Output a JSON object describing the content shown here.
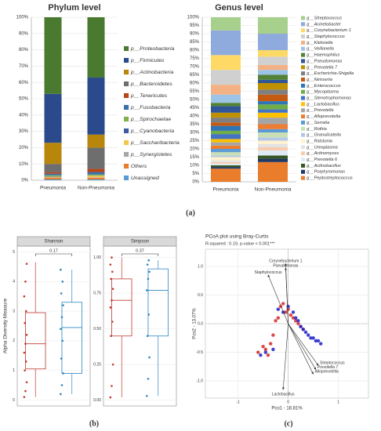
{
  "panel_labels": [
    "(a)",
    "(b)",
    "(c)"
  ],
  "chart_data": [
    {
      "type": "stacked_bar",
      "title": "Phylum level",
      "categories": [
        "Pneumonia",
        "Non-Pneumonia"
      ],
      "ylim": [
        0,
        100
      ],
      "yticks": [
        {
          "value": 0,
          "label": "0%"
        },
        {
          "value": 10,
          "label": "10%"
        },
        {
          "value": 20,
          "label": "20%"
        },
        {
          "value": 30,
          "label": "30%"
        },
        {
          "value": 40,
          "label": "40%"
        },
        {
          "value": 50,
          "label": "50%"
        },
        {
          "value": 60,
          "label": "60%"
        },
        {
          "value": 70,
          "label": "70%"
        },
        {
          "value": 80,
          "label": "80%"
        },
        {
          "value": 90,
          "label": "90%"
        },
        {
          "value": 100,
          "label": "100%"
        }
      ],
      "grid": true,
      "series": [
        {
          "name": "p__Proteobacteria",
          "color": "#4a7a2f",
          "values": [
            47,
            37
          ]
        },
        {
          "name": "p__Firmicutes",
          "color": "#2b4a8c",
          "values": [
            30,
            35
          ]
        },
        {
          "name": "p__Actinobacteria",
          "color": "#b8860b",
          "values": [
            13,
            8
          ]
        },
        {
          "name": "p__Bacteroidetes",
          "color": "#6e6e6e",
          "values": [
            5,
            13
          ]
        },
        {
          "name": "p__Tenericutes",
          "color": "#b5451b",
          "values": [
            1,
            2
          ]
        },
        {
          "name": "p__Fusobacteria",
          "color": "#3a6fa8",
          "values": [
            1,
            1.5
          ]
        },
        {
          "name": "p__Spirochaetae",
          "color": "#7fb24a",
          "values": [
            0.5,
            0.5
          ]
        },
        {
          "name": "p__Cyanobacteria",
          "color": "#3b5ba0",
          "values": [
            0.3,
            0.2
          ]
        },
        {
          "name": "p__Saccharibacteria",
          "color": "#f2c94c",
          "values": [
            0.5,
            1
          ]
        },
        {
          "name": "p__Synergistetes",
          "color": "#a6a6a6",
          "values": [
            0.2,
            0.3
          ]
        },
        {
          "name": "Others",
          "color": "#e97d2c",
          "values": [
            1,
            1
          ]
        },
        {
          "name": "Unassigned",
          "color": "#5b9bd5",
          "values": [
            0.5,
            0.5
          ]
        }
      ]
    },
    {
      "type": "stacked_bar",
      "title": "Genus level",
      "categories": [
        "Pneumonia",
        "Non-Pneumonia"
      ],
      "ylim": [
        0,
        100
      ],
      "yticks": [
        {
          "value": 0,
          "label": "0%"
        },
        {
          "value": 5,
          "label": "5%"
        },
        {
          "value": 10,
          "label": "10%"
        },
        {
          "value": 15,
          "label": "15%"
        },
        {
          "value": 20,
          "label": "20%"
        },
        {
          "value": 25,
          "label": "25%"
        },
        {
          "value": 30,
          "label": "30%"
        },
        {
          "value": 35,
          "label": "35%"
        },
        {
          "value": 40,
          "label": "40%"
        },
        {
          "value": 45,
          "label": "45%"
        },
        {
          "value": 50,
          "label": "50%"
        },
        {
          "value": 55,
          "label": "55%"
        },
        {
          "value": 60,
          "label": "60%"
        },
        {
          "value": 65,
          "label": "65%"
        },
        {
          "value": 70,
          "label": "70%"
        },
        {
          "value": 75,
          "label": "75%"
        },
        {
          "value": 80,
          "label": "80%"
        },
        {
          "value": 85,
          "label": "85%"
        },
        {
          "value": 90,
          "label": "90%"
        },
        {
          "value": 95,
          "label": "95%"
        },
        {
          "value": 100,
          "label": "100%"
        }
      ],
      "grid": true,
      "series": [
        {
          "name": "g__Streptococcus",
          "color": "#a8d08d",
          "values": [
            8,
            10
          ]
        },
        {
          "name": "g__Acinetobacter",
          "color": "#8faadc",
          "values": [
            15,
            10
          ]
        },
        {
          "name": "g__Corynebacterium 1",
          "color": "#ffd966",
          "values": [
            9,
            4
          ]
        },
        {
          "name": "g__Staphylococcus",
          "color": "#d0d0d0",
          "values": [
            9,
            5
          ]
        },
        {
          "name": "g__Klebsiella",
          "color": "#f4b183",
          "values": [
            6,
            3
          ]
        },
        {
          "name": "g__Veillonella",
          "color": "#9dc3e6",
          "values": [
            5,
            3
          ]
        },
        {
          "name": "g__Haemophilus",
          "color": "#548235",
          "values": [
            2,
            3
          ]
        },
        {
          "name": "g__Pseudomonas",
          "color": "#2f5597",
          "values": [
            4,
            2
          ]
        },
        {
          "name": "g__Prevotella 7",
          "color": "#bf9000",
          "values": [
            3,
            4
          ]
        },
        {
          "name": "g__Escherichia-Shigella",
          "color": "#7f7f7f",
          "values": [
            3,
            3
          ]
        },
        {
          "name": "g__Neisseria",
          "color": "#c55a11",
          "values": [
            2,
            4
          ]
        },
        {
          "name": "g__Enterococcus",
          "color": "#2e75b6",
          "values": [
            3,
            2
          ]
        },
        {
          "name": "g__Mycoplasma",
          "color": "#70ad47",
          "values": [
            2,
            3
          ]
        },
        {
          "name": "g__Stenotrophomonas",
          "color": "#4472c4",
          "values": [
            3,
            2
          ]
        },
        {
          "name": "g__Lactobacillus",
          "color": "#ffc000",
          "values": [
            2,
            3
          ]
        },
        {
          "name": "g__Prevotella",
          "color": "#a5a5a5",
          "values": [
            2,
            4
          ]
        },
        {
          "name": "g__Alloprevotella",
          "color": "#ed7d31",
          "values": [
            2,
            3
          ]
        },
        {
          "name": "g__Serratia",
          "color": "#5b9bd5",
          "values": [
            2,
            2
          ]
        },
        {
          "name": "g__Rothia",
          "color": "#c9e0b5",
          "values": [
            2,
            3
          ]
        },
        {
          "name": "g__Granulicatella",
          "color": "#b4c7e7",
          "values": [
            1,
            2
          ]
        },
        {
          "name": "g__Ralstonia",
          "color": "#fff2cc",
          "values": [
            2,
            2
          ]
        },
        {
          "name": "g__Ureaplasma",
          "color": "#e2e2e2",
          "values": [
            1,
            2
          ]
        },
        {
          "name": "g__Actinomyces",
          "color": "#f8cbad",
          "values": [
            1,
            2
          ]
        },
        {
          "name": "g__Prevotella 6",
          "color": "#deebf7",
          "values": [
            1,
            3
          ]
        },
        {
          "name": "g__Actinobacillus",
          "color": "#375623",
          "values": [
            1,
            2
          ]
        },
        {
          "name": "g__Porphyromonas",
          "color": "#1f3864",
          "values": [
            1,
            2
          ]
        },
        {
          "name": "g__Peptostreptococcus",
          "color": "#e97d2c",
          "values": [
            8,
            12
          ]
        }
      ]
    },
    {
      "type": "box",
      "title": "Shannon",
      "annotation": "0.17",
      "ylabel": "Alpha Diversity Measure",
      "ylim": [
        -0.2,
        5.2
      ],
      "yticks": [
        0,
        1,
        2,
        3,
        4,
        5
      ],
      "series": [
        {
          "color": "#c0392b",
          "min": 0.1,
          "q1": 1.05,
          "median": 1.9,
          "q3": 2.95,
          "max": 4.65,
          "points": [
            0.1,
            0.3,
            0.6,
            1.0,
            1.3,
            1.6,
            1.9,
            2.2,
            2.6,
            3.0,
            3.5,
            4.0,
            4.6
          ]
        },
        {
          "color": "#2e86c1",
          "min": 0.2,
          "q1": 0.9,
          "median": 2.45,
          "q3": 3.3,
          "max": 4.4,
          "points": [
            0.2,
            0.5,
            0.9,
            1.4,
            2.0,
            2.4,
            2.8,
            3.2,
            3.6,
            4.0,
            4.4
          ]
        }
      ]
    },
    {
      "type": "box",
      "title": "Simpson",
      "annotation": "0.37",
      "ylim": [
        -0.04,
        1.08
      ],
      "yticks": [
        {
          "value": 0,
          "label": "0.00"
        },
        0.25,
        {
          "value": 0.5,
          "label": "0.50"
        },
        0.75,
        {
          "value": 1,
          "label": "1.00"
        }
      ],
      "series": [
        {
          "color": "#c0392b",
          "min": 0.02,
          "q1": 0.45,
          "median": 0.7,
          "q3": 0.85,
          "max": 1.0,
          "points": [
            0.02,
            0.1,
            0.25,
            0.45,
            0.55,
            0.65,
            0.7,
            0.78,
            0.85,
            0.9,
            0.95,
            1.0
          ]
        },
        {
          "color": "#2e86c1",
          "min": 0.03,
          "q1": 0.45,
          "median": 0.77,
          "q3": 0.92,
          "max": 0.98,
          "points": [
            0.03,
            0.15,
            0.3,
            0.45,
            0.6,
            0.77,
            0.85,
            0.9,
            0.95,
            0.98
          ]
        }
      ]
    },
    {
      "type": "scatter",
      "title": "PCoA plot using Bray-Curtis",
      "subtitle": "R-squared : 0.19, p-value < 0.001***",
      "xlabel": "Pco1 - 18.81%",
      "ylabel": "Pco2 - 13.07%",
      "xlim": [
        -1.65,
        1.6
      ],
      "ylim": [
        -1.3,
        1.3
      ],
      "xticks": [
        -1,
        0,
        1
      ],
      "yticks": [
        {
          "value": 1,
          "label": "1.0"
        },
        0.5,
        {
          "value": 0,
          "label": "0.0"
        },
        -0.5,
        {
          "value": -1,
          "label": "-1.0"
        }
      ],
      "grid": true,
      "series": [
        {
          "color": "#d62728",
          "x": [
            -0.6,
            -0.5,
            -0.45,
            -0.35,
            -0.3,
            -0.2,
            -0.15,
            -0.1,
            -0.05,
            0,
            0.05,
            0.1,
            0.15,
            0.2,
            0.25,
            0.3,
            -0.4,
            -0.25
          ],
          "y": [
            -0.5,
            -0.4,
            -0.45,
            -0.35,
            -0.2,
            0.1,
            0.3,
            0.35,
            0.2,
            0.25,
            0.15,
            0.1,
            0.05,
            0,
            -0.05,
            -0.1,
            -0.55,
            0.05
          ]
        },
        {
          "color": "#1f1fc8",
          "x": [
            -0.55,
            -0.45,
            -0.3,
            -0.1,
            0,
            0.1,
            0.15,
            0.2,
            0.25,
            0.3,
            0.35,
            0.4,
            0.45,
            0.5,
            0.55,
            0.6,
            0.65,
            -0.2
          ],
          "y": [
            -0.55,
            -0.5,
            -0.45,
            0.2,
            0.3,
            0.2,
            0.1,
            0.05,
            -0.05,
            -0.1,
            -0.15,
            -0.2,
            -0.25,
            -0.25,
            -0.3,
            -0.3,
            -0.35,
            0.25
          ]
        }
      ],
      "arrows": [
        {
          "label": "Corynebacterium 1",
          "x": -0.05,
          "y": 1.05
        },
        {
          "label": "Pseudomonas",
          "x": -0.05,
          "y": 0.97
        },
        {
          "label": "Staphylococcus",
          "x": -0.4,
          "y": 0.85
        },
        {
          "label": "Streptococcus",
          "x": 0.6,
          "y": -0.73
        },
        {
          "label": "Prevotella 7",
          "x": 0.55,
          "y": -0.8
        },
        {
          "label": "Alloprevotella",
          "x": 0.5,
          "y": -0.88
        },
        {
          "label": "Lactobacillus",
          "x": -0.1,
          "y": -1.15
        }
      ]
    }
  ]
}
